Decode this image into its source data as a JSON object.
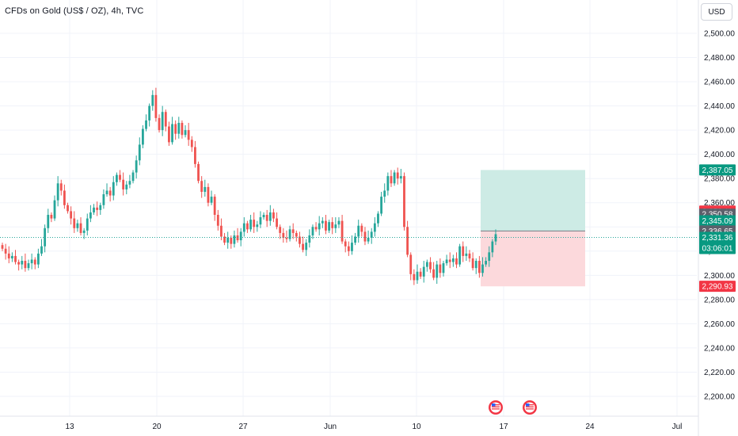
{
  "header": {
    "title": "CFDs on Gold (US$ / OZ), 4h, TVC",
    "currency": "USD"
  },
  "colors": {
    "up": "#26a69a",
    "down": "#ef5350",
    "profit_zone": "#cdebe5",
    "loss_zone": "#fcd9dc",
    "current_price_line": "#26a69a",
    "grid": "#f0f3fa",
    "axis_text": "#131722",
    "tag_grey": "#5d606b"
  },
  "chart_data": {
    "type": "candlestick",
    "title": "CFDs on Gold (US$ / OZ), 4h, TVC",
    "ylim": [
      2185,
      2515
    ],
    "y_ticks": [
      "2,200.00",
      "2,220.00",
      "2,240.00",
      "2,260.00",
      "2,280.00",
      "2,300.00",
      "2,320.00",
      "2,340.00",
      "2,360.00",
      "2,380.00",
      "2,400.00",
      "2,420.00",
      "2,440.00",
      "2,460.00",
      "2,480.00",
      "2,500.00"
    ],
    "x_ticks": [
      "13",
      "20",
      "27",
      "Jun",
      "10",
      "17",
      "24",
      "Jul"
    ],
    "candles_close": [
      2322,
      2318,
      2314,
      2316,
      2311,
      2309,
      2312,
      2306,
      2310,
      2313,
      2309,
      2318,
      2324,
      2339,
      2350,
      2347,
      2362,
      2376,
      2370,
      2358,
      2353,
      2347,
      2339,
      2343,
      2335,
      2337,
      2347,
      2352,
      2356,
      2354,
      2358,
      2367,
      2370,
      2366,
      2377,
      2383,
      2379,
      2371,
      2375,
      2378,
      2385,
      2395,
      2408,
      2421,
      2428,
      2440,
      2449,
      2430,
      2420,
      2435,
      2423,
      2410,
      2425,
      2417,
      2426,
      2416,
      2420,
      2412,
      2406,
      2392,
      2378,
      2369,
      2373,
      2360,
      2365,
      2350,
      2341,
      2332,
      2327,
      2331,
      2326,
      2333,
      2329,
      2336,
      2343,
      2338,
      2346,
      2340,
      2342,
      2348,
      2350,
      2345,
      2352,
      2347,
      2340,
      2335,
      2331,
      2330,
      2338,
      2335,
      2332,
      2326,
      2321,
      2327,
      2333,
      2340,
      2338,
      2343,
      2345,
      2337,
      2344,
      2339,
      2342,
      2345,
      2328,
      2324,
      2320,
      2327,
      2332,
      2341,
      2336,
      2328,
      2331,
      2336,
      2343,
      2351,
      2365,
      2370,
      2382,
      2376,
      2385,
      2380,
      2382,
      2340,
      2317,
      2301,
      2296,
      2303,
      2299,
      2307,
      2311,
      2305,
      2298,
      2309,
      2302,
      2310,
      2313,
      2311,
      2314,
      2309,
      2324,
      2316,
      2318,
      2314,
      2306,
      2312,
      2302,
      2309,
      2312,
      2319,
      2328,
      2334
    ],
    "current_price": 2331.36,
    "countdown": "03:06:01",
    "price_labels": [
      {
        "value": 2387.05,
        "text": "2,387.05",
        "kind": "green"
      },
      {
        "value": 2353.11,
        "text": "2,353.11",
        "kind": "red"
      },
      {
        "value": 2350.58,
        "text": "2,350.58",
        "kind": "grey"
      },
      {
        "value": 2345.09,
        "text": "2,345.09",
        "kind": "green"
      },
      {
        "value": 2336.65,
        "text": "2,336.65",
        "kind": "grey"
      },
      {
        "value": 2290.93,
        "text": "2,290.93",
        "kind": "red"
      }
    ],
    "position": {
      "entry": 2336.65,
      "take_profit": 2387.05,
      "stop_loss": 2290.93
    },
    "events": [
      "us-flag-icon",
      "us-flag-icon"
    ]
  }
}
